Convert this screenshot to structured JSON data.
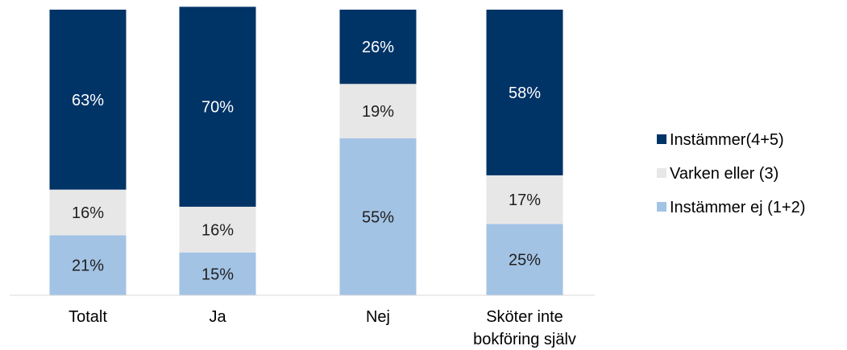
{
  "chart_data": {
    "type": "bar",
    "stacked": true,
    "categories": [
      [
        "Totalt"
      ],
      [
        "Ja"
      ],
      [
        "Nej"
      ],
      [
        "Sköter inte",
        "bokföring själv"
      ]
    ],
    "series": [
      {
        "name": "Instämmer ej (1+2)",
        "values": [
          21,
          15,
          55,
          25
        ],
        "labels": [
          "21%",
          "15%",
          "55%",
          "25%"
        ],
        "color": "#a3c3e4",
        "label_color": "#1f1f1f"
      },
      {
        "name": "Varken eller (3)",
        "values": [
          16,
          16,
          19,
          17
        ],
        "labels": [
          "16%",
          "16%",
          "19%",
          "17%"
        ],
        "color": "#e7e7e7",
        "label_color": "#1f1f1f"
      },
      {
        "name": "Instämmer(4+5)",
        "values": [
          63,
          70,
          26,
          58
        ],
        "labels": [
          "63%",
          "70%",
          "26%",
          "58%"
        ],
        "color": "#003366",
        "label_color": "#ffffff"
      }
    ],
    "legend_order": [
      2,
      1,
      0
    ],
    "legend_position": "right",
    "ylim": [
      0,
      100
    ],
    "grid": false
  }
}
